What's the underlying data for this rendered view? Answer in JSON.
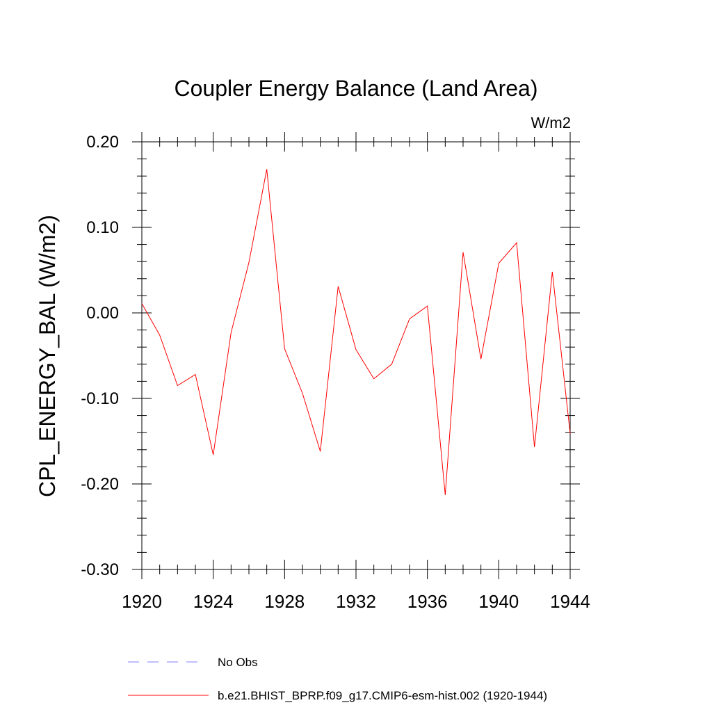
{
  "chart_data": {
    "type": "line",
    "title": "Coupler Energy Balance (Land Area)",
    "units": "W/m2",
    "ylabel": "CPL_ENERGY_BAL  (W/m2)",
    "xlabel": "",
    "xlim": [
      1920,
      1944
    ],
    "ylim": [
      -0.3,
      0.2
    ],
    "x_ticks": [
      "1920",
      "1924",
      "1928",
      "1932",
      "1936",
      "1940",
      "1944"
    ],
    "y_ticks": [
      "-0.30",
      "-0.20",
      "-0.10",
      "0.00",
      "0.10",
      "0.20"
    ],
    "series": [
      {
        "name": "b.e21.BHIST_BPRP.f09_g17.CMIP6-esm-hist.002 (1920-1944)",
        "color": "#ff0000",
        "style": "solid",
        "x": [
          1920,
          1921,
          1922,
          1923,
          1924,
          1925,
          1926,
          1927,
          1928,
          1929,
          1930,
          1931,
          1932,
          1933,
          1934,
          1935,
          1936,
          1937,
          1938,
          1939,
          1940,
          1941,
          1942,
          1943,
          1944
        ],
        "values": [
          0.011,
          -0.026,
          -0.085,
          -0.072,
          -0.166,
          -0.023,
          0.059,
          0.168,
          -0.042,
          -0.094,
          -0.162,
          0.031,
          -0.043,
          -0.077,
          -0.06,
          -0.007,
          0.008,
          -0.213,
          0.071,
          -0.054,
          0.058,
          0.082,
          -0.157,
          0.048,
          -0.141
        ]
      }
    ],
    "legend": [
      {
        "label": "No Obs",
        "color": "#8080ff",
        "style": "dashed"
      },
      {
        "label": "b.e21.BHIST_BPRP.f09_g17.CMIP6-esm-hist.002 (1920-1944)",
        "color": "#ff0000",
        "style": "solid"
      }
    ]
  }
}
